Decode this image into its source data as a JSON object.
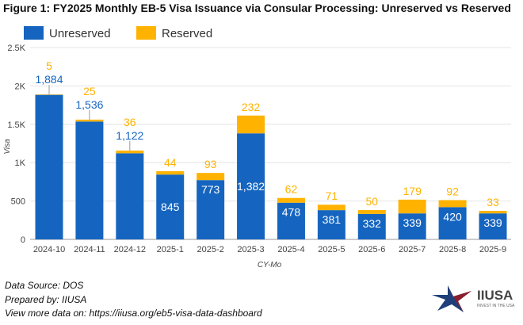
{
  "chart_data": {
    "type": "bar",
    "stacked": true,
    "title": "Figure 1: FY2025 Monthly EB-5 Visa Issuance via Consular Processing: Unreserved vs Reserved",
    "xlabel": "CY-Mo",
    "ylabel": "Visa",
    "ylim": [
      0,
      2500
    ],
    "yticks": [
      0,
      500,
      1000,
      1500,
      2000,
      2500
    ],
    "ytick_labels": [
      "0",
      "500",
      "1K",
      "1.5K",
      "2K",
      "2.5K"
    ],
    "grid": true,
    "legend": "top-left",
    "categories": [
      "2024-10",
      "2024-11",
      "2024-12",
      "2025-1",
      "2025-2",
      "2025-3",
      "2025-4",
      "2025-5",
      "2025-6",
      "2025-7",
      "2025-8",
      "2025-9"
    ],
    "series": [
      {
        "name": "Unreserved",
        "color": "#1565c0",
        "values": [
          1884,
          1536,
          1122,
          845,
          773,
          1382,
          478,
          381,
          332,
          339,
          420,
          339
        ],
        "labels": [
          "1,884",
          "1,536",
          "1,122",
          "845",
          "773",
          "1,382",
          "478",
          "381",
          "332",
          "339",
          "420",
          "339"
        ]
      },
      {
        "name": "Reserved",
        "color": "#ffb300",
        "values": [
          5,
          25,
          36,
          44,
          93,
          232,
          62,
          71,
          50,
          179,
          92,
          33
        ],
        "labels": [
          "5",
          "25",
          "36",
          "44",
          "93",
          "232",
          "62",
          "71",
          "50",
          "179",
          "92",
          "33"
        ]
      }
    ]
  },
  "footer": {
    "source": "Data Source: DOS",
    "prepared": "Prepared by: IIUSA",
    "more": "View more data on: https://iiusa.org/eb5-visa-data-dashboard"
  },
  "logo": {
    "name": "IIUSA",
    "tagline": "INVEST IN THE USA"
  }
}
